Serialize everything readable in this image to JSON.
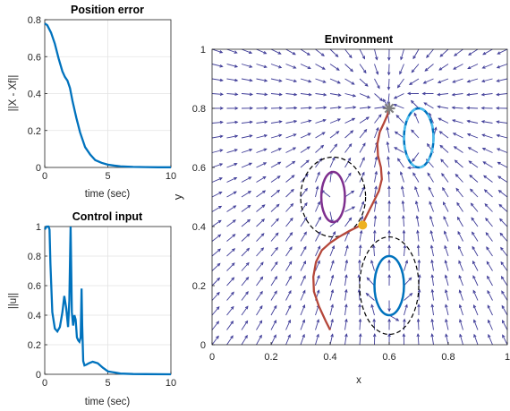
{
  "chart_data": [
    {
      "id": "position_error",
      "type": "line",
      "title": "Position error",
      "xlabel": "time (sec)",
      "ylabel": "||X - Xf||",
      "xlim": [
        0,
        10
      ],
      "ylim": [
        0,
        0.8
      ],
      "xticks": [
        0,
        5,
        10
      ],
      "yticks": [
        0,
        0.2,
        0.4,
        0.6,
        0.8
      ],
      "xtick_labels": [
        "0",
        "5",
        "10"
      ],
      "ytick_labels": [
        "0",
        "0.2",
        "0.4",
        "0.6",
        "0.8"
      ],
      "grid": true,
      "color": "#0072BD",
      "series": [
        {
          "x": [
            0,
            0.2,
            0.5,
            0.8,
            1.1,
            1.4,
            1.6,
            1.8,
            2.0,
            2.2,
            2.5,
            2.8,
            3.2,
            3.6,
            4.0,
            4.5,
            5.0,
            5.5,
            6.0,
            7.0,
            8.0,
            9.0,
            10.0
          ],
          "y": [
            0.78,
            0.77,
            0.73,
            0.67,
            0.59,
            0.52,
            0.49,
            0.47,
            0.43,
            0.36,
            0.27,
            0.19,
            0.11,
            0.07,
            0.04,
            0.025,
            0.015,
            0.01,
            0.006,
            0.003,
            0.002,
            0.001,
            0.001
          ]
        }
      ]
    },
    {
      "id": "control_input",
      "type": "line",
      "title": "Control input",
      "xlabel": "time (sec)",
      "ylabel": "||u||",
      "xlim": [
        0,
        10
      ],
      "ylim": [
        0,
        1
      ],
      "xticks": [
        0,
        5,
        10
      ],
      "yticks": [
        0,
        0.2,
        0.4,
        0.6,
        0.8,
        1
      ],
      "xtick_labels": [
        "0",
        "5",
        "10"
      ],
      "ytick_labels": [
        "0",
        "0.2",
        "0.4",
        "0.6",
        "0.8",
        "1"
      ],
      "grid": true,
      "color": "#0072BD",
      "series": [
        {
          "x": [
            0,
            0.15,
            0.3,
            0.38,
            0.45,
            0.6,
            0.8,
            1.0,
            1.2,
            1.4,
            1.55,
            1.7,
            1.85,
            1.95,
            2.05,
            2.15,
            2.25,
            2.35,
            2.45,
            2.55,
            2.65,
            2.75,
            2.85,
            2.92,
            2.97,
            3.05,
            3.15,
            3.3,
            3.5,
            3.8,
            4.2,
            4.6,
            5.0,
            6.0,
            7.0,
            8.0,
            10.0
          ],
          "y": [
            0.98,
            1.0,
            1.0,
            0.98,
            0.75,
            0.42,
            0.31,
            0.29,
            0.32,
            0.42,
            0.53,
            0.45,
            0.32,
            0.5,
            1.0,
            0.42,
            0.33,
            0.4,
            0.37,
            0.25,
            0.23,
            0.22,
            0.25,
            0.58,
            0.33,
            0.09,
            0.06,
            0.065,
            0.075,
            0.085,
            0.075,
            0.045,
            0.02,
            0.005,
            0.002,
            0.001,
            0.0
          ]
        }
      ]
    },
    {
      "id": "environment",
      "type": "line",
      "title": "Environment",
      "xlabel": "x",
      "ylabel": "y",
      "xlim": [
        0,
        1
      ],
      "ylim": [
        0,
        1
      ],
      "xticks": [
        0,
        0.2,
        0.4,
        0.6,
        0.8,
        1
      ],
      "yticks": [
        0,
        0.2,
        0.4,
        0.6,
        0.8,
        1
      ],
      "xtick_labels": [
        "0",
        "0.2",
        "0.4",
        "0.6",
        "0.8",
        "1"
      ],
      "ytick_labels": [
        "0",
        "0.2",
        "0.4",
        "0.6",
        "0.8",
        "1"
      ],
      "grid": false,
      "trajectory": {
        "color": "#B5473A",
        "x": [
          0.4,
          0.385,
          0.362,
          0.345,
          0.343,
          0.352,
          0.372,
          0.4,
          0.43,
          0.465,
          0.495,
          0.51,
          0.525,
          0.545,
          0.565,
          0.575,
          0.572,
          0.562,
          0.56,
          0.568,
          0.582,
          0.595,
          0.6
        ],
        "y": [
          0.05,
          0.08,
          0.13,
          0.18,
          0.23,
          0.28,
          0.32,
          0.345,
          0.365,
          0.385,
          0.4,
          0.41,
          0.44,
          0.48,
          0.52,
          0.56,
          0.6,
          0.64,
          0.68,
          0.72,
          0.75,
          0.78,
          0.8
        ]
      },
      "goal": {
        "x": 0.6,
        "y": 0.8,
        "color": "#808080"
      },
      "current_point": {
        "x": 0.51,
        "y": 0.405,
        "color": "#EDB120"
      },
      "obstacles": [
        {
          "cx": 0.41,
          "cy": 0.5,
          "rx": 0.04,
          "ry": 0.085,
          "color": "#7E2F8E",
          "dashed_boundary": {
            "rx": 0.11,
            "ry": 0.135
          }
        },
        {
          "cx": 0.6,
          "cy": 0.2,
          "rx": 0.05,
          "ry": 0.1,
          "color": "#0072BD",
          "dashed_boundary": {
            "rx": 0.1,
            "ry": 0.165
          }
        },
        {
          "cx": 0.7,
          "cy": 0.7,
          "rx": 0.05,
          "ry": 0.1,
          "color": "#0072BD",
          "inner_color": "#4DBEEE",
          "dashed_boundary": null
        }
      ],
      "vector_field": {
        "color": "#3F3C98",
        "description_grid": "21x21 quiver field"
      }
    }
  ]
}
